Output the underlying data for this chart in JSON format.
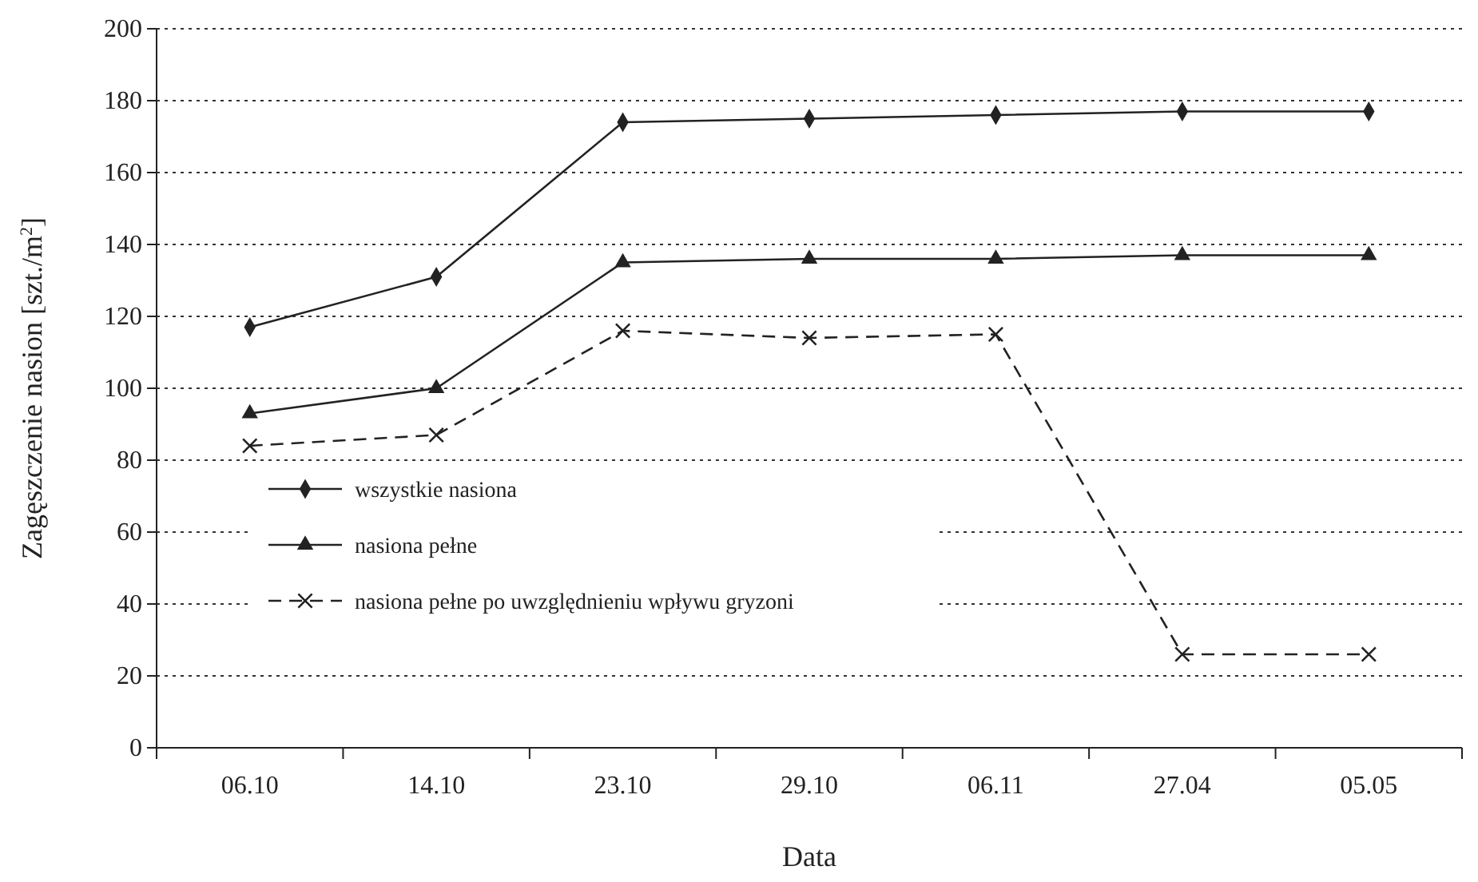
{
  "chart_data": {
    "type": "line",
    "xlabel": "Data",
    "ylabel": "Zagęszczenie nasion [szt./m$^{2}$]",
    "categories": [
      "06.10",
      "14.10",
      "23.10",
      "29.10",
      "06.11",
      "27.04",
      "05.05"
    ],
    "ylim": [
      0,
      200
    ],
    "yticks": [
      0,
      20,
      40,
      60,
      80,
      100,
      120,
      140,
      160,
      180,
      200
    ],
    "grid": "y",
    "legend": "bottom left",
    "series": [
      {
        "name": "wszystkie nasiona",
        "color": "#222222",
        "marker": "diamond",
        "line_style": "solid",
        "values": [
          117,
          131,
          174,
          175,
          176,
          177,
          177
        ]
      },
      {
        "name": "nasiona pełne",
        "color": "#222222",
        "marker": "triangle",
        "line_style": "solid",
        "values": [
          93,
          100,
          135,
          136,
          136,
          137,
          137
        ]
      },
      {
        "name": "nasiona pełne po uwzględnieniu wpływu gryzoni",
        "color": "#222222",
        "marker": "cross",
        "line_style": "dashed",
        "values": [
          84,
          87,
          116,
          114,
          115,
          26,
          26
        ]
      }
    ]
  }
}
